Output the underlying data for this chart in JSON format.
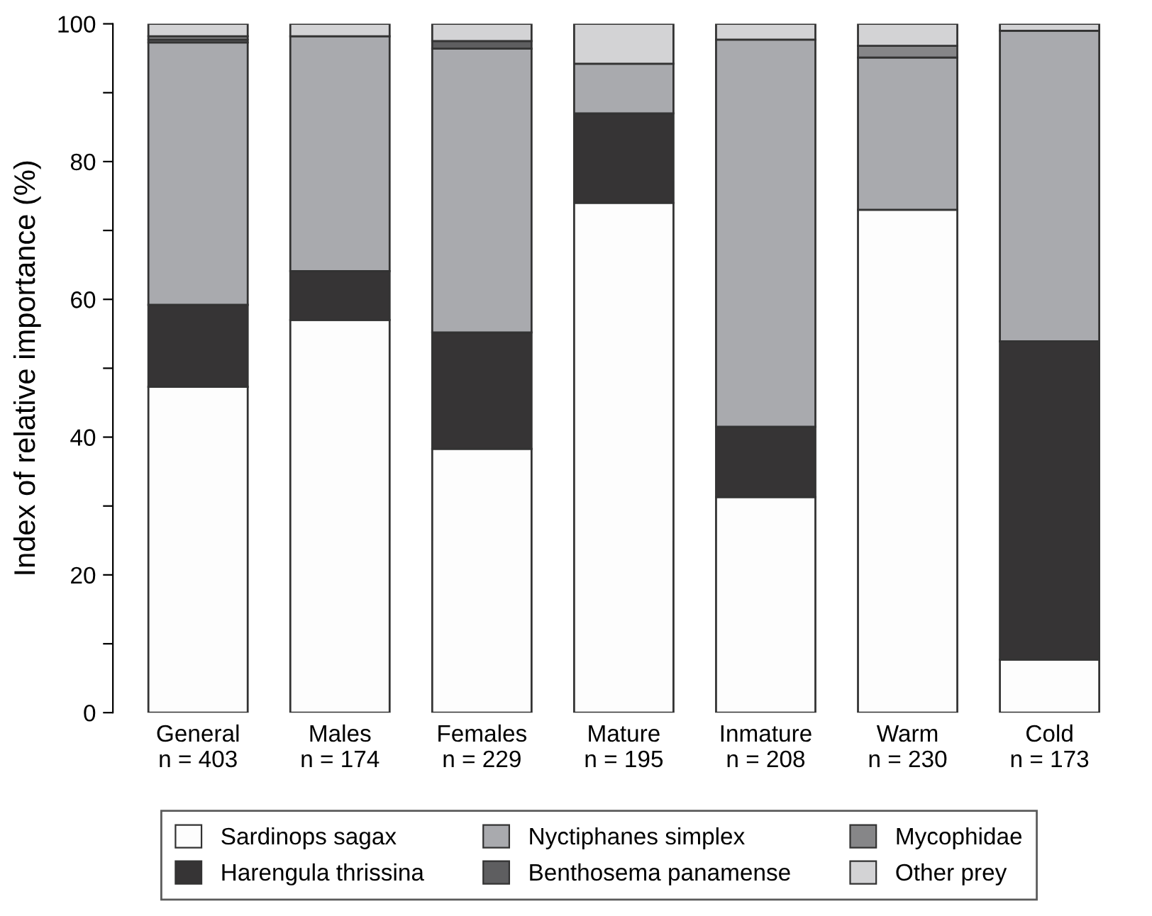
{
  "chart_data": {
    "type": "bar",
    "stacked": true,
    "ylabel": "Index of relative importance (%)",
    "categories": [
      "General\nn = 403",
      "Males\nn = 174",
      "Females\nn = 229",
      "Mature\nn = 195",
      "Inmature\nn = 208",
      "Warm\nn = 230",
      "Cold\nn = 173"
    ],
    "series": [
      {
        "name": "Sardinops sagax",
        "color": "#fdfdfd",
        "values": [
          47.3,
          57.0,
          38.3,
          74.0,
          31.3,
          73.0,
          7.7
        ]
      },
      {
        "name": "Harengula thrissina",
        "color": "#363435",
        "values": [
          11.9,
          7.1,
          16.9,
          13.0,
          10.2,
          0,
          46.2
        ]
      },
      {
        "name": "Nyctiphanes simplex",
        "color": "#a9aaae",
        "values": [
          38.1,
          34.1,
          41.2,
          7.2,
          56.2,
          22.1,
          45.1
        ]
      },
      {
        "name": "Benthosema panamense",
        "color": "#5e5e60",
        "values": [
          0.4,
          0,
          1.1,
          0,
          0,
          0,
          0
        ]
      },
      {
        "name": "Mycophidae",
        "color": "#868688",
        "values": [
          0.5,
          0,
          0,
          0,
          0,
          1.7,
          0
        ]
      },
      {
        "name": "Other prey",
        "color": "#d3d3d5",
        "values": [
          1.8,
          1.8,
          2.5,
          5.8,
          2.3,
          3.2,
          1.0
        ]
      }
    ],
    "ylim": [
      0,
      100
    ],
    "yticks": [
      0,
      {
        "value": 10,
        "label": null
      },
      20,
      {
        "value": 30,
        "label": null
      },
      40,
      {
        "value": 50,
        "label": null
      },
      60,
      {
        "value": 70,
        "label": null
      },
      80,
      {
        "value": 90,
        "label": null
      },
      100
    ],
    "grid": false,
    "legend": "bottom"
  }
}
